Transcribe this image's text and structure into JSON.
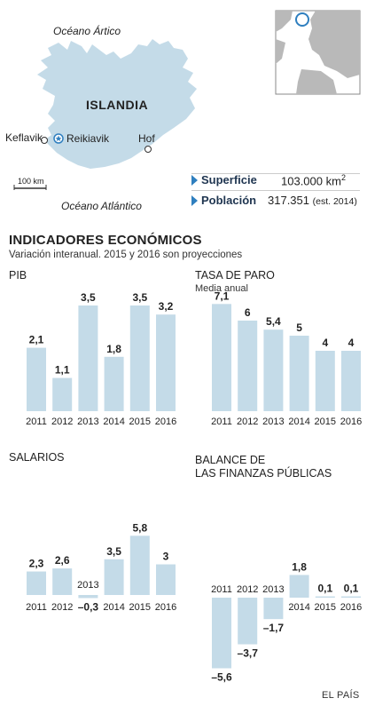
{
  "map": {
    "ocean_north": "Océano Ártico",
    "ocean_south": "Océano Atlántico",
    "country": "ISLANDIA",
    "cities": {
      "keflavik": "Keflavik",
      "capital": "Reikiavik",
      "hof": "Hof"
    },
    "scale": "100 km",
    "colors": {
      "land": "#c4dbe8",
      "inset_land": "#b9b9b9",
      "inset_sea": "#ffffff",
      "marker": "#2f7fbf"
    }
  },
  "stats": {
    "area_label": "Superficie",
    "area_value": "103.000 km",
    "area_sup": "2",
    "pop_label": "Población",
    "pop_value": "317.351",
    "pop_note": "(est. 2014)"
  },
  "section": {
    "title": "INDICADORES ECONÓMICOS",
    "subtitle": "Variación interanual. 2015 y 2016 son proyecciones"
  },
  "charts": {
    "pib": {
      "title": "PIB"
    },
    "paro": {
      "title": "TASA DE PARO",
      "subtitle": "Media anual"
    },
    "salarios": {
      "title": "SALARIOS"
    },
    "balance": {
      "title_line1": "BALANCE DE",
      "title_line2": "LAS FINANZAS PÚBLICAS"
    }
  },
  "credit": "EL PAÍS",
  "bar_color": "#c4dbe8",
  "chart_data": [
    {
      "id": "pib",
      "type": "bar",
      "title": "PIB",
      "categories": [
        "2011",
        "2012",
        "2013",
        "2014",
        "2015",
        "2016"
      ],
      "values": [
        2.1,
        1.1,
        3.5,
        1.8,
        3.5,
        3.2
      ],
      "labels": [
        "2,1",
        "1,1",
        "3,5",
        "1,8",
        "3,5",
        "3,2"
      ]
    },
    {
      "id": "paro",
      "type": "bar",
      "title": "TASA DE PARO",
      "subtitle": "Media anual",
      "categories": [
        "2011",
        "2012",
        "2013",
        "2014",
        "2015",
        "2016"
      ],
      "values": [
        7.1,
        6,
        5.4,
        5,
        4,
        4
      ],
      "labels": [
        "7,1",
        "6",
        "5,4",
        "5",
        "4",
        "4"
      ]
    },
    {
      "id": "salarios",
      "type": "bar",
      "title": "SALARIOS",
      "categories": [
        "2011",
        "2012",
        "2013",
        "2014",
        "2015",
        "2016"
      ],
      "values": [
        2.3,
        2.6,
        -0.3,
        3.5,
        5.8,
        3
      ],
      "labels": [
        "2,3",
        "2,6",
        "–0,3",
        "3,5",
        "5,8",
        "3"
      ]
    },
    {
      "id": "balance",
      "type": "bar",
      "title": "BALANCE DE LAS FINANZAS PÚBLICAS",
      "categories": [
        "2011",
        "2012",
        "2013",
        "2014",
        "2015",
        "2016"
      ],
      "values": [
        -5.6,
        -3.7,
        -1.7,
        1.8,
        0.1,
        0.1
      ],
      "labels": [
        "–5,6",
        "–3,7",
        "–1,7",
        "1,8",
        "0,1",
        "0,1"
      ]
    }
  ]
}
